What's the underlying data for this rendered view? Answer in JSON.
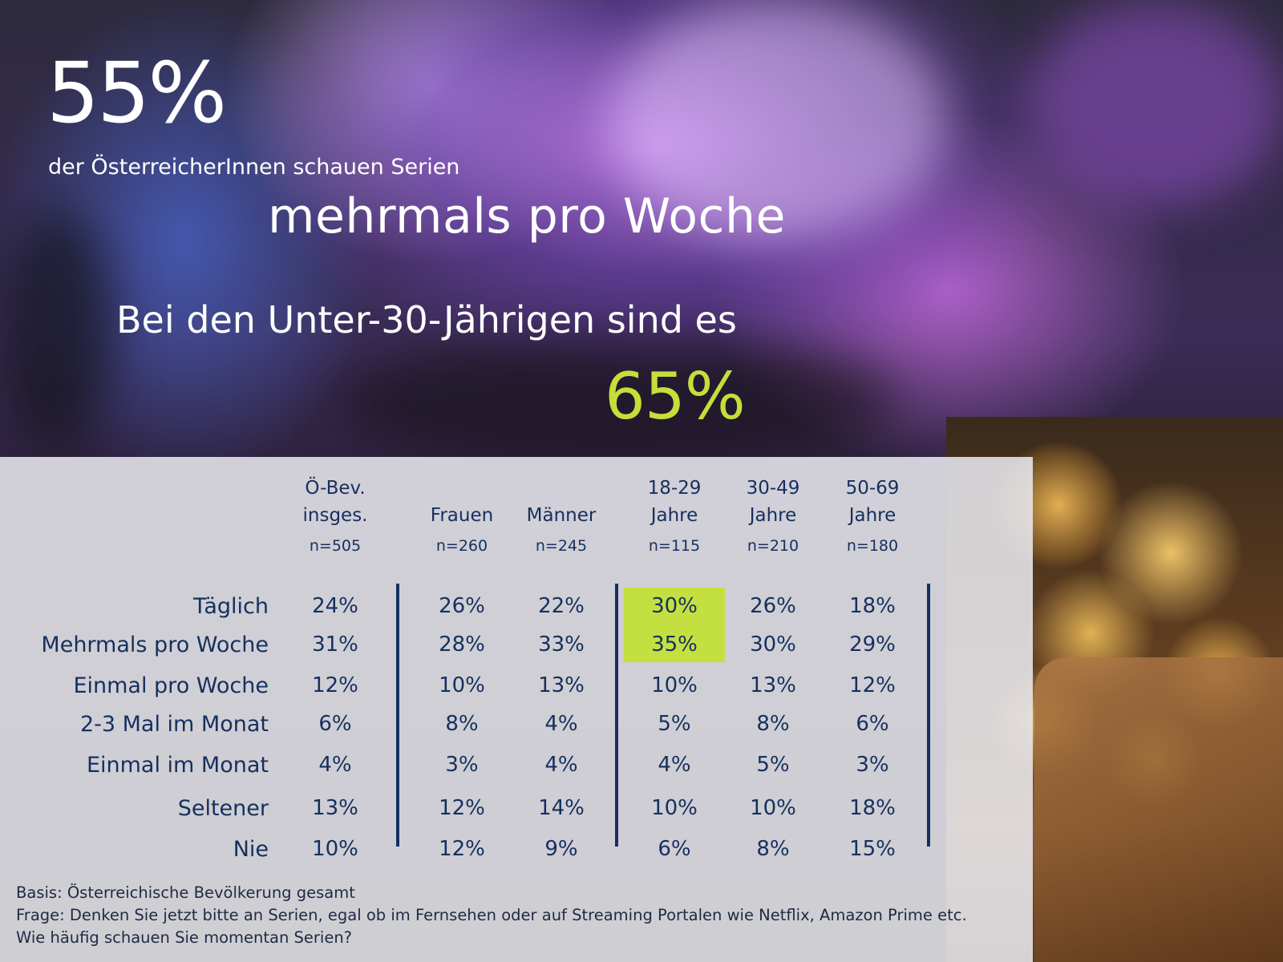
{
  "headline": {
    "big_pct": "55%",
    "line1": "der ÖsterreicherInnen schauen Serien",
    "line2": "mehrmals pro Woche",
    "line3": "Bei den Unter-30-Jährigen sind es",
    "young_pct": "65%"
  },
  "colors": {
    "text_dark": "#15305e",
    "accent_green": "#c7de3a",
    "highlight": "#c4e040"
  },
  "chart_data": {
    "type": "table",
    "columns": [
      {
        "label_lines": [
          "Ö-Bev.",
          "insges."
        ],
        "n": "n=505"
      },
      {
        "label_lines": [
          "Frauen"
        ],
        "n": "n=260"
      },
      {
        "label_lines": [
          "Männer"
        ],
        "n": "n=245"
      },
      {
        "label_lines": [
          "18-29",
          "Jahre"
        ],
        "n": "n=115"
      },
      {
        "label_lines": [
          "30-49",
          "Jahre"
        ],
        "n": "n=210"
      },
      {
        "label_lines": [
          "50-69",
          "Jahre"
        ],
        "n": "n=180"
      }
    ],
    "rows": [
      {
        "label": "Täglich",
        "values": [
          "24%",
          "26%",
          "22%",
          "30%",
          "26%",
          "18%"
        ]
      },
      {
        "label": "Mehrmals pro Woche",
        "values": [
          "31%",
          "28%",
          "33%",
          "35%",
          "30%",
          "29%"
        ]
      },
      {
        "label": "Einmal pro Woche",
        "values": [
          "12%",
          "10%",
          "13%",
          "10%",
          "13%",
          "12%"
        ]
      },
      {
        "label": "2-3 Mal im Monat",
        "values": [
          "6%",
          "8%",
          "4%",
          "5%",
          "8%",
          "6%"
        ]
      },
      {
        "label": "Einmal im Monat",
        "values": [
          "4%",
          "3%",
          "4%",
          "4%",
          "5%",
          "3%"
        ]
      },
      {
        "label": "Seltener",
        "values": [
          "13%",
          "12%",
          "14%",
          "10%",
          "10%",
          "18%"
        ]
      },
      {
        "label": "Nie",
        "values": [
          "10%",
          "12%",
          "9%",
          "6%",
          "8%",
          "15%"
        ]
      }
    ],
    "highlighted_cells": [
      {
        "row": 0,
        "col": 3
      },
      {
        "row": 1,
        "col": 3
      }
    ]
  },
  "footnotes": {
    "basis": "Basis: Österreichische Bevölkerung gesamt",
    "question1": "Frage: Denken Sie jetzt bitte an Serien, egal ob im Fernsehen oder auf Streaming Portalen wie Netflix, Amazon Prime etc.",
    "question2": "Wie häufig schauen Sie momentan Serien?"
  }
}
